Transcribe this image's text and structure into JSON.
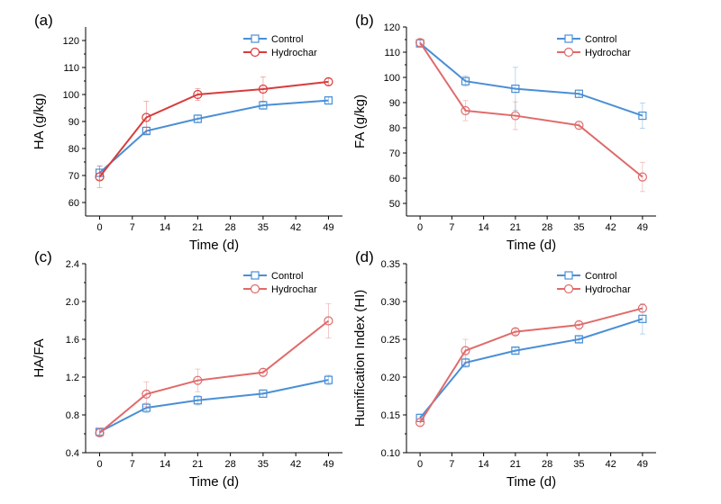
{
  "colors": {
    "control": "#4a8fd6",
    "hydrochar": "#e06a6a",
    "hydrochar_a": "#d93b3b"
  },
  "chart_data": [
    {
      "type": "line",
      "panel_label": "(a)",
      "xlabel": "Time (d)",
      "ylabel": "HA (g/kg)",
      "x": [
        0,
        10,
        21,
        35,
        49
      ],
      "xticks": [
        0,
        7,
        14,
        21,
        28,
        35,
        42,
        49
      ],
      "xlim": [
        -3,
        52
      ],
      "ylim": [
        55,
        125
      ],
      "yticks": [
        60,
        70,
        80,
        90,
        100,
        110,
        120
      ],
      "ytick_labels": [
        "60",
        "70",
        "80",
        "90",
        "100",
        "110",
        "120"
      ],
      "legend_position": "top-right",
      "series": [
        {
          "name": "Control",
          "marker": "square",
          "color_key": "control",
          "values": [
            71,
            86.5,
            91,
            96,
            97.8
          ],
          "errors": [
            2.5,
            1.5,
            1.5,
            1.5,
            1.2
          ]
        },
        {
          "name": "Hydrochar",
          "marker": "circle",
          "color_key": "hydrochar_a",
          "values": [
            69.5,
            91.5,
            100,
            102,
            104.7
          ],
          "errors": [
            4,
            6,
            2.2,
            4.5,
            1.2
          ]
        }
      ]
    },
    {
      "type": "line",
      "panel_label": "(b)",
      "xlabel": "Time (d)",
      "ylabel": "FA (g/kg)",
      "x": [
        0,
        10,
        21,
        35,
        49
      ],
      "xticks": [
        0,
        7,
        14,
        21,
        28,
        35,
        42,
        49
      ],
      "xlim": [
        -3,
        52
      ],
      "ylim": [
        45,
        120
      ],
      "yticks": [
        50,
        60,
        70,
        80,
        90,
        100,
        110,
        120
      ],
      "ytick_labels": [
        "50",
        "60",
        "70",
        "80",
        "90",
        "100",
        "110",
        "120"
      ],
      "legend_position": "top-right",
      "series": [
        {
          "name": "Control",
          "marker": "square",
          "color_key": "control",
          "values": [
            113.5,
            98.5,
            95.5,
            93.5,
            84.8
          ],
          "errors": [
            1.5,
            2,
            8.5,
            1.5,
            5
          ]
        },
        {
          "name": "Hydrochar",
          "marker": "circle",
          "color_key": "hydrochar",
          "values": [
            113.8,
            86.8,
            84.8,
            81,
            60.5
          ],
          "errors": [
            1.5,
            4,
            5.5,
            1.5,
            5.8
          ]
        }
      ]
    },
    {
      "type": "line",
      "panel_label": "(c)",
      "xlabel": "Time (d)",
      "ylabel": "HA/FA",
      "x": [
        0,
        10,
        21,
        35,
        49
      ],
      "xticks": [
        0,
        7,
        14,
        21,
        28,
        35,
        42,
        49
      ],
      "xlim": [
        -3,
        52
      ],
      "ylim": [
        0.4,
        2.4
      ],
      "yticks": [
        0.4,
        0.8,
        1.2,
        1.6,
        2.0,
        2.4
      ],
      "ytick_labels": [
        "0.4",
        "0.8",
        "1.2",
        "1.6",
        "2.0",
        "2.4"
      ],
      "legend_position": "top-right",
      "series": [
        {
          "name": "Control",
          "marker": "square",
          "color_key": "control",
          "values": [
            0.62,
            0.875,
            0.955,
            1.025,
            1.17
          ],
          "errors": [
            0.03,
            0.05,
            0.05,
            0.04,
            0.05
          ]
        },
        {
          "name": "Hydrochar",
          "marker": "circle",
          "color_key": "hydrochar",
          "values": [
            0.61,
            1.02,
            1.165,
            1.25,
            1.795
          ],
          "errors": [
            0.04,
            0.13,
            0.12,
            0.04,
            0.18
          ]
        }
      ]
    },
    {
      "type": "line",
      "panel_label": "(d)",
      "xlabel": "Time (d)",
      "ylabel": "Humification Index (HI)",
      "x": [
        0,
        10,
        21,
        35,
        49
      ],
      "xticks": [
        0,
        7,
        14,
        21,
        28,
        35,
        42,
        49
      ],
      "xlim": [
        -3,
        52
      ],
      "ylim": [
        0.1,
        0.35
      ],
      "yticks": [
        0.1,
        0.15,
        0.2,
        0.25,
        0.3,
        0.35
      ],
      "ytick_labels": [
        "0.10",
        "0.15",
        "0.20",
        "0.25",
        "0.30",
        "0.35"
      ],
      "legend_position": "top-right",
      "series": [
        {
          "name": "Control",
          "marker": "square",
          "color_key": "control",
          "values": [
            0.146,
            0.219,
            0.235,
            0.25,
            0.277
          ],
          "errors": [
            0.005,
            0.006,
            0.004,
            0.004,
            0.02
          ]
        },
        {
          "name": "Hydrochar",
          "marker": "circle",
          "color_key": "hydrochar",
          "values": [
            0.14,
            0.235,
            0.26,
            0.269,
            0.291
          ],
          "errors": [
            0.005,
            0.015,
            0.004,
            0.006,
            0.005
          ]
        }
      ]
    }
  ]
}
